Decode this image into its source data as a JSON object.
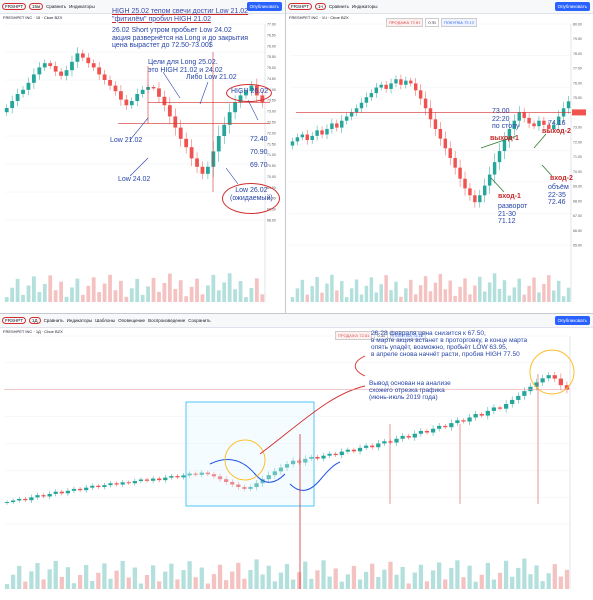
{
  "toolbar": {
    "top_left": [
      "FRSHPT",
      "15м",
      "",
      "Сравнить",
      "",
      "",
      "",
      "Индикаторы",
      "",
      "",
      "",
      "Опубликовать"
    ],
    "top_right": [
      "FRSHPT",
      "1ч",
      "",
      "Сравнить",
      "",
      "",
      "",
      "Индикаторы",
      "",
      "",
      "",
      "Опубликовать"
    ],
    "bottom": [
      "FRSHPT",
      "1Д",
      "",
      "Сравнить",
      "",
      "Индикаторы",
      "Шаблоны",
      "Оповещение",
      "Воспроизведение",
      "Сохранить",
      "",
      "Опубликовать"
    ]
  },
  "symbols": {
    "top_left": "FRESHPET INC · 15 · Cboe BZX",
    "top_right": "FRESHPET INC · 1Ч · Cboe BZX",
    "bottom": "FRESHPET INC · 1Д · Cboe BZX"
  },
  "trade": {
    "sell_label": "ПРОДАЖА",
    "sell_price": "72.81",
    "spread": "0.31",
    "buy_label": "ПОКУПКА",
    "buy_price": "73.12"
  },
  "annotations_left": {
    "high_text": "HIGH 25.02 тепом свечи достиг Low 21.02\n\"фитилём\" пробил HIGH 21.02",
    "short_text": "26.02 Short утром пробьет Low 24.02\nакция развернётся на Long и до закрытия\nцена вырастет до 72.50-73.00$",
    "targets": "Цели для Long 25.02.\nэто HIGH 21.02 и 24.02",
    "libo": "Либо Low 21.02",
    "high2602": "HIGH 26.02",
    "low2102": "Low 21.02",
    "low2402": "Low 24.02",
    "p1": "72.40",
    "p2": "70.90",
    "p3": "69.70",
    "low2602": "Low 26.02\n(ожидаемый)"
  },
  "annotations_right": {
    "entry1": "73.00\n22:20\nпо стопу",
    "exit1": "выход-1",
    "in1": "вход-1",
    "reversal": "разворот\n21-30\n71.12",
    "p7416": "74.16",
    "exit2": "выход-2",
    "in2": "вход-2",
    "vol": "объём\n22-35\n72.46"
  },
  "annotations_bottom": {
    "forecast": "26-28 февраля цена снизится к 67.50,\nв марте акция встанет в проторговку, в конце марта\nопять упадёт, возможно, пробьёт LOW 63.95,\nв апреле снова начнёт расти, пробив HIGH 77.50",
    "conclusion": "Вывод основан на анализе\nсхожего отрезка графика\n(июнь-июль 2019 года)"
  },
  "chart_data": [
    {
      "type": "candlestick",
      "id": "15m",
      "ylim": [
        64,
        78
      ],
      "yticks": [
        "77.00",
        "76.50",
        "76.00",
        "75.50",
        "75.00",
        "74.50",
        "74.00",
        "73.50",
        "73.00",
        "72.50",
        "72.00",
        "71.50",
        "71.00",
        "70.50",
        "70.00",
        "69.50",
        "69.00",
        "68.50",
        "68.00"
      ],
      "close": [
        72,
        72.5,
        73,
        73.3,
        73.8,
        74.4,
        74.9,
        75.2,
        75,
        74.6,
        74.3,
        74.7,
        75.3,
        75.9,
        75.6,
        75.2,
        74.9,
        74.4,
        74,
        73.6,
        73.2,
        72.6,
        72.2,
        72.5,
        73,
        73.3,
        73.5,
        73.4,
        72.8,
        72.2,
        71.4,
        70.6,
        69.8,
        69.2,
        68.4,
        67.8,
        67.3,
        67.8,
        68.9,
        70,
        70.8,
        71.7,
        72.4,
        72.9,
        73.2,
        73.6,
        72.9,
        72.4
      ]
    },
    {
      "type": "candlestick",
      "id": "1h",
      "ylim": [
        64,
        80
      ],
      "yticks": [
        "80.00",
        "79.00",
        "78.00",
        "77.00",
        "76.00",
        "75.00",
        "74.00",
        "73.00",
        "72.00",
        "71.00",
        "70.00",
        "69.00",
        "68.00",
        "67.00",
        "66.00",
        "65.00"
      ],
      "close": [
        71.5,
        71.8,
        72,
        71.6,
        71.9,
        72.3,
        72,
        72.4,
        72.8,
        72.5,
        73,
        73.3,
        73.6,
        73.9,
        74.3,
        74.7,
        75,
        75.4,
        75.6,
        75.3,
        75.7,
        76,
        75.6,
        75.9,
        75.7,
        75.2,
        74.6,
        73.9,
        73.1,
        72.4,
        71.7,
        71,
        70.3,
        69.6,
        68.8,
        68.1,
        67.6,
        67.1,
        67.6,
        68.3,
        69.1,
        70,
        70.8,
        71.6,
        72.4,
        73,
        73.6,
        73.2,
        72.8,
        72.6,
        73,
        72.7,
        72.4,
        72.7,
        73.3,
        73.9,
        74.4
      ]
    },
    {
      "type": "candlestick",
      "id": "1d",
      "ylim": [
        30,
        90
      ],
      "close": [
        37,
        37.5,
        38,
        37.6,
        38.5,
        39.2,
        38.8,
        39.6,
        40.3,
        39.8,
        40.6,
        41.2,
        40.8,
        41.6,
        42.2,
        41.8,
        42.4,
        43,
        42.6,
        43.3,
        43,
        43.7,
        44.2,
        43.8,
        44.5,
        44,
        44.8,
        45.3,
        44.9,
        45.5,
        46.1,
        45.7,
        46.4,
        45.9,
        45.2,
        44.3,
        43.4,
        42.6,
        41.8,
        41.2,
        41.8,
        43,
        44.3,
        45.6,
        46.8,
        48,
        49.1,
        50.2,
        49.6,
        50.8,
        51.4,
        50.9,
        51.8,
        52.4,
        52,
        53.1,
        53.7,
        53.2,
        54.3,
        55,
        54.5,
        55.7,
        56.4,
        56,
        57.2,
        58.1,
        57.6,
        58.8,
        59.7,
        59.2,
        60.4,
        61.3,
        60.9,
        62.2,
        63.1,
        62.7,
        64,
        65.1,
        64.6,
        66.1,
        67.2,
        66.8,
        68.3,
        69.6,
        70.9,
        72.4,
        73.8,
        75.2,
        76.5,
        77.5,
        76.4,
        74.3,
        72.9
      ]
    }
  ]
}
